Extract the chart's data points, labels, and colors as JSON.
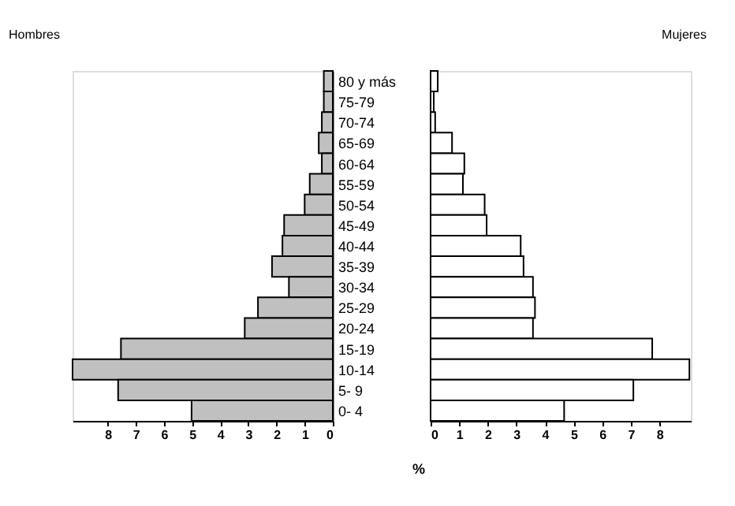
{
  "chart_data": [
    {
      "type": "bar",
      "orientation": "horizontal",
      "title": "Hombres",
      "xlabel": "%",
      "categories": [
        "80 y más",
        "75-79",
        "70-74",
        "65-69",
        "60-64",
        "55-59",
        "50-54",
        "45-49",
        "40-44",
        "35-39",
        "30-34",
        "25-29",
        "20-24",
        "15-19",
        "10-14",
        "5- 9",
        "0- 4"
      ],
      "series": [
        {
          "color": "#c0c0c0",
          "values": [
            0.32,
            0.32,
            0.39,
            0.5,
            0.39,
            0.82,
            1.0,
            1.73,
            1.79,
            2.16,
            1.56,
            2.66,
            3.13,
            7.53,
            9.25,
            7.63,
            5.02
          ]
        }
      ],
      "xlim": [
        9.25,
        0
      ],
      "xticks": [
        0,
        1,
        2,
        3,
        4,
        5,
        6,
        7,
        8
      ],
      "grid": false,
      "legend": false
    },
    {
      "type": "bar",
      "orientation": "horizontal",
      "title": "Mujeres",
      "series": [
        {
          "color": "#ffffff",
          "values": [
            0.25,
            0.11,
            0.16,
            0.75,
            1.18,
            1.13,
            1.89,
            1.96,
            3.15,
            3.25,
            3.58,
            3.65,
            3.58,
            7.75,
            9.05,
            7.09,
            4.67
          ]
        }
      ],
      "xlim": [
        0,
        9.1
      ],
      "xticks": [
        0,
        1,
        2,
        3,
        4,
        5,
        6,
        7,
        8
      ],
      "tick_labels": "x",
      "grid": false,
      "legend": false
    }
  ]
}
